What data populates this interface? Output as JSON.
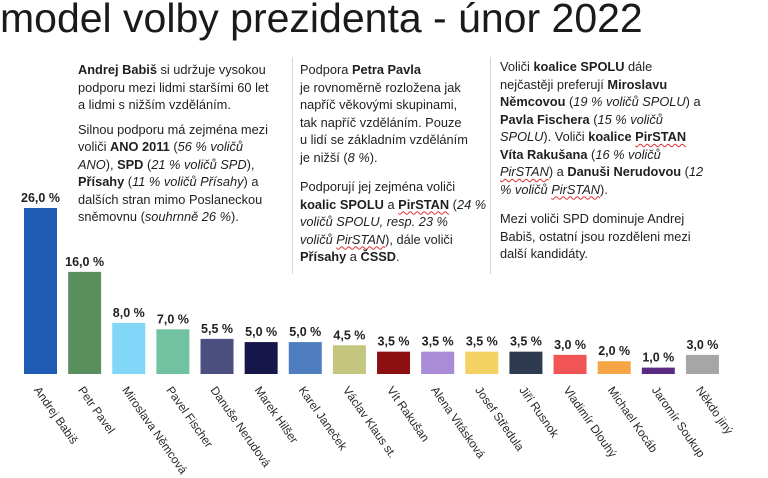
{
  "chart_data": {
    "type": "bar",
    "title": "model volby prezidenta - únor 2022",
    "xlabel": "",
    "ylabel": "",
    "unit": "%",
    "ylim": [
      0,
      26
    ],
    "grid": false,
    "legend": "none",
    "categories": [
      "Andrej Babiš",
      "Petr Pavel",
      "Miroslava Němcová",
      "Pavel Fischer",
      "Danuše Nerudová",
      "Marek Hilšer",
      "Karel Janeček",
      "Václav Klaus st.",
      "Vít Rakušan",
      "Alena Vitásková",
      "Josef Středula",
      "Jiří Rusnok",
      "Vladimír Dlouhý",
      "Michael Kocáb",
      "Jaromír Soukup",
      "Někdo jiný"
    ],
    "values": [
      26.0,
      16.0,
      8.0,
      7.0,
      5.5,
      5.0,
      5.0,
      4.5,
      3.5,
      3.5,
      3.5,
      3.5,
      3.0,
      2.0,
      1.0,
      3.0
    ],
    "colors": [
      "#1F5CB6",
      "#5B8E5D",
      "#82D6F7",
      "#70C2A1",
      "#4A4F80",
      "#16164A",
      "#4F7EC0",
      "#C4C680",
      "#8C1012",
      "#A98BD6",
      "#F3D163",
      "#2E3A50",
      "#F15454",
      "#F5A544",
      "#5B2A83",
      "#A6A6A6"
    ],
    "annotations": [
      {
        "paragraphs": [
          [
            [
              {
                "t": "Andrej Babiš",
                "b": true
              },
              {
                "t": " si udržuje vysokou"
              }
            ],
            [
              {
                "t": "podporu mezi lidmi staršími 60 let"
              }
            ],
            [
              {
                "t": "a lidmi s nižším vzděláním."
              }
            ]
          ],
          [
            [
              {
                "t": "Silnou podporu má zejména mezi"
              }
            ],
            [
              {
                "t": "voliči "
              },
              {
                "t": "ANO 2011",
                "b": true
              },
              {
                "t": " ("
              },
              {
                "t": "56 % voličů",
                "i": true
              }
            ],
            [
              {
                "t": "ANO",
                "i": true
              },
              {
                "t": "), "
              },
              {
                "t": "SPD",
                "b": true
              },
              {
                "t": " ("
              },
              {
                "t": "21 % voličů SPD",
                "i": true
              },
              {
                "t": "),"
              }
            ],
            [
              {
                "t": "Přísahy",
                "b": true
              },
              {
                "t": " ("
              },
              {
                "t": "11 % voličů Přísahy",
                "i": true
              },
              {
                "t": ") a"
              }
            ],
            [
              {
                "t": "dalších stran mimo Poslaneckou"
              }
            ],
            [
              {
                "t": "sněmovnu ("
              },
              {
                "t": "souhrnně 26 %",
                "i": true
              },
              {
                "t": ")."
              }
            ]
          ]
        ]
      },
      {
        "paragraphs": [
          [
            [
              {
                "t": "Podpora "
              },
              {
                "t": "Petra Pavla",
                "b": true
              }
            ],
            [
              {
                "t": "je rovnoměrně rozložena jak"
              }
            ],
            [
              {
                "t": "napříč věkovými skupinami,"
              }
            ],
            [
              {
                "t": "tak napříč vzděláním. Pouze"
              }
            ],
            [
              {
                "t": "u lidí se základním vzděláním"
              }
            ],
            [
              {
                "t": "je nižší ("
              },
              {
                "t": "8 %",
                "i": true
              },
              {
                "t": ")."
              }
            ]
          ],
          [
            [
              {
                "t": "Podporují jej zejména voliči"
              }
            ],
            [
              {
                "t": "koalic SPOLU",
                "b": true
              },
              {
                "t": " a "
              },
              {
                "t": "PirSTAN",
                "b": true,
                "u": true
              },
              {
                "t": " ("
              },
              {
                "t": "24 %",
                "i": true
              }
            ],
            [
              {
                "t": "voličů SPOLU, resp. 23 %",
                "i": true
              }
            ],
            [
              {
                "t": "voličů ",
                "i": true
              },
              {
                "t": "PirSTAN",
                "i": true,
                "u": true
              },
              {
                "t": "), dále voliči"
              }
            ],
            [
              {
                "t": "Přísahy",
                "b": true
              },
              {
                "t": " a "
              },
              {
                "t": "ČSSD",
                "b": true
              },
              {
                "t": "."
              }
            ]
          ]
        ]
      },
      {
        "paragraphs": [
          [
            [
              {
                "t": "Voliči "
              },
              {
                "t": "koalice SPOLU",
                "b": true
              },
              {
                "t": " dále"
              }
            ],
            [
              {
                "t": "nejčastěji preferují "
              },
              {
                "t": "Miroslavu",
                "b": true
              }
            ],
            [
              {
                "t": "Němcovou",
                "b": true
              },
              {
                "t": " ("
              },
              {
                "t": "19 % voličů SPOLU",
                "i": true
              },
              {
                "t": ") a"
              }
            ],
            [
              {
                "t": "Pavla Fischera",
                "b": true
              },
              {
                "t": " ("
              },
              {
                "t": "15 % voličů",
                "i": true
              }
            ],
            [
              {
                "t": "SPOLU",
                "i": true
              },
              {
                "t": "). Voliči "
              },
              {
                "t": "koalice ",
                "b": true
              },
              {
                "t": "PirSTAN",
                "b": true,
                "u": true
              }
            ],
            [
              {
                "t": "Víta Rakušana",
                "b": true
              },
              {
                "t": " ("
              },
              {
                "t": "16 % voličů",
                "i": true
              }
            ],
            [
              {
                "t": "PirSTAN",
                "i": true,
                "u": true
              },
              {
                "t": ") a "
              },
              {
                "t": "Danuši Nerudovou",
                "b": true
              },
              {
                "t": " ("
              },
              {
                "t": "12",
                "i": true
              }
            ],
            [
              {
                "t": "% voličů ",
                "i": true
              },
              {
                "t": "PirSTAN",
                "i": true,
                "u": true
              },
              {
                "t": ")."
              }
            ]
          ],
          [
            [
              {
                "t": "Mezi voliči SPD dominuje Andrej"
              }
            ],
            [
              {
                "t": "Babiš, ostatní jsou rozděleni mezi"
              }
            ],
            [
              {
                "t": "další kandidáty."
              }
            ]
          ]
        ]
      }
    ]
  }
}
